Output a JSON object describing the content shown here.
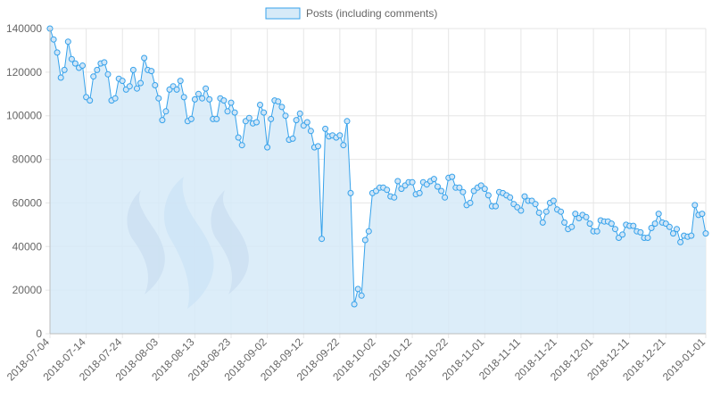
{
  "chart_data": {
    "type": "area",
    "title": "",
    "xlabel": "",
    "ylabel": "",
    "ylim": [
      0,
      140000
    ],
    "y_ticks": [
      0,
      20000,
      40000,
      60000,
      80000,
      100000,
      120000,
      140000
    ],
    "x_ticks": [
      "2018-07-04",
      "2018-07-14",
      "2018-07-24",
      "2018-08-03",
      "2018-08-13",
      "2018-08-23",
      "2018-09-02",
      "2018-09-12",
      "2018-09-22",
      "2018-10-02",
      "2018-10-12",
      "2018-10-22",
      "2018-11-01",
      "2018-11-11",
      "2018-11-21",
      "2018-12-01",
      "2018-12-11",
      "2018-12-21",
      "2019-01-01"
    ],
    "x_range": [
      "2018-07-04",
      "2019-01-01"
    ],
    "grid": true,
    "legend_position": "top-center",
    "series_color": "#36a2eb",
    "fill_color": "#d6eaf8",
    "series": [
      {
        "name": "Posts (including comments)",
        "start_date": "2018-07-04",
        "values": [
          140000,
          135000,
          129000,
          117500,
          121000,
          134000,
          126000,
          124000,
          122000,
          123000,
          108500,
          107000,
          118000,
          121000,
          124000,
          124500,
          119000,
          107000,
          108000,
          117000,
          116000,
          112000,
          113500,
          121000,
          112500,
          115000,
          126500,
          121000,
          120500,
          114000,
          108000,
          98000,
          102000,
          112000,
          113500,
          112000,
          116000,
          108500,
          97500,
          98500,
          107500,
          110000,
          108000,
          112500,
          107500,
          98500,
          98500,
          108000,
          107000,
          102000,
          106000,
          101500,
          90000,
          86500,
          97500,
          99000,
          96500,
          97000,
          105000,
          101500,
          85500,
          98500,
          107000,
          106500,
          104000,
          100000,
          89000,
          89500,
          98000,
          101000,
          95500,
          97000,
          93000,
          85500,
          86000,
          43500,
          94000,
          90500,
          91000,
          90000,
          91000,
          86500,
          97500,
          64500,
          13500,
          20500,
          17500,
          43000,
          47000,
          64500,
          65500,
          67000,
          67000,
          66000,
          63000,
          62500,
          70000,
          66500,
          68000,
          69500,
          69500,
          64000,
          64500,
          69500,
          68500,
          70000,
          71000,
          67500,
          65500,
          62500,
          71500,
          72000,
          67000,
          67000,
          65000,
          59000,
          60000,
          65500,
          67000,
          68000,
          66500,
          63500,
          58500,
          58500,
          65000,
          64500,
          63500,
          62500,
          59500,
          58000,
          56500,
          63000,
          61000,
          61000,
          59500,
          55500,
          51000,
          56000,
          60000,
          61000,
          57000,
          56000,
          51000,
          48000,
          49000,
          55000,
          53000,
          54500,
          53500,
          50500,
          47000,
          47000,
          52000,
          51500,
          51500,
          50500,
          48000,
          44000,
          45500,
          50000,
          49500,
          49500,
          47000,
          46500,
          44000,
          44000,
          48500,
          50500,
          55000,
          51000,
          50500,
          49000,
          46000,
          48000,
          42000,
          45000,
          44500,
          45000,
          59000,
          54500,
          55000,
          46000
        ]
      }
    ]
  }
}
